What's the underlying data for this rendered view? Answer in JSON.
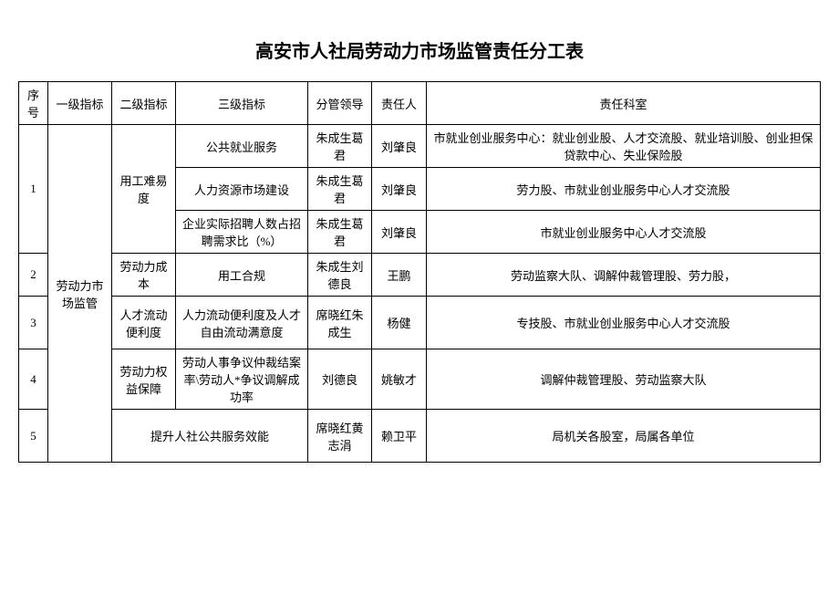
{
  "title": "高安市人社局劳动力市场监管责任分工表",
  "headers": {
    "seq": "序号",
    "level1": "一级指标",
    "level2": "二级指标",
    "level3": "三级指标",
    "leader": "分管领导",
    "person": "责任人",
    "dept": "责任科室"
  },
  "level1_label": "劳动力市场监管",
  "rows": [
    {
      "seq": "1",
      "level2": "用工难易度",
      "level2_rowspan": 3,
      "level3": "公共就业服务",
      "leader": "朱成生葛君",
      "person": "刘肇良",
      "dept": "市就业创业服务中心：就业创业股、人才交流股、就业培训股、创业担保贷款中心、失业保险股"
    },
    {
      "level3": "人力资源市场建设",
      "leader": "朱成生葛君",
      "person": "刘肇良",
      "dept": "劳力股、市就业创业服务中心人才交流股"
    },
    {
      "level3": "企业实际招聘人数占招聘需求比（%）",
      "leader": "朱成生葛君",
      "person": "刘肇良",
      "dept": "市就业创业服务中心人才交流股"
    },
    {
      "seq": "2",
      "level2": "劳动力成本",
      "level3": "用工合规",
      "leader": "朱成生刘德良",
      "person": "王鹏",
      "dept": "劳动监察大队、调解仲裁管理股、劳力股，"
    },
    {
      "seq": "3",
      "level2": "人才流动便利度",
      "level3": "人力流动便利度及人才自由流动满意度",
      "leader": "席晓红朱成生",
      "person": "杨健",
      "dept": "专技股、市就业创业服务中心人才交流股"
    },
    {
      "seq": "4",
      "level2": "劳动力权益保障",
      "level3": "劳动人事争议仲裁结案率\\劳动人*争议调解成功率",
      "leader": "刘德良",
      "person": "姚敏才",
      "dept": "调解仲裁管理股、劳动监察大队"
    },
    {
      "seq": "5",
      "level23_merged": "提升人社公共服务效能",
      "leader": "席晓红黄志涓",
      "person": "赖卫平",
      "dept": "局机关各股室，局属各单位"
    }
  ],
  "styling": {
    "background_color": "#ffffff",
    "border_color": "#000000",
    "text_color": "#000000",
    "title_fontsize": 20,
    "cell_fontsize": 13,
    "font_family": "SimSun"
  }
}
